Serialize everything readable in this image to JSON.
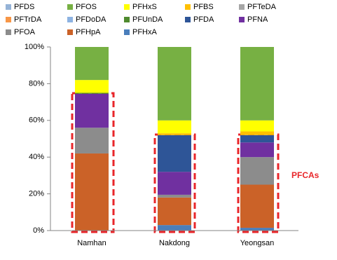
{
  "chart_data": {
    "type": "stacked_bar",
    "categories": [
      "Namhan",
      "Nakdong",
      "Yeongsan"
    ],
    "series": [
      {
        "name": "PFDS",
        "color": "#95b3d7",
        "values": [
          0,
          0,
          0
        ]
      },
      {
        "name": "PFOS",
        "color": "#77b043",
        "values": [
          18,
          40,
          40
        ]
      },
      {
        "name": "PFHxS",
        "color": "#ffff00",
        "values": [
          7,
          7,
          6
        ]
      },
      {
        "name": "PFBS",
        "color": "#ffc000",
        "values": [
          0,
          1,
          2
        ]
      },
      {
        "name": "PFTeDA",
        "color": "#a6a6a6",
        "values": [
          0,
          0,
          0
        ]
      },
      {
        "name": "PFTrDA",
        "color": "#f79646",
        "values": [
          0,
          0,
          0
        ]
      },
      {
        "name": "PFDoDA",
        "color": "#8db3e2",
        "values": [
          0,
          0,
          0
        ]
      },
      {
        "name": "PFUnDA",
        "color": "#4f8a2e",
        "values": [
          0.5,
          0,
          0
        ]
      },
      {
        "name": "PFDA",
        "color": "#2e5597",
        "values": [
          0,
          20,
          4
        ]
      },
      {
        "name": "PFNA",
        "color": "#7030a0",
        "values": [
          18.5,
          12.5,
          8
        ]
      },
      {
        "name": "PFOA",
        "color": "#8c8c8c",
        "values": [
          14,
          1.5,
          15
        ]
      },
      {
        "name": "PFHpA",
        "color": "#cb6228",
        "values": [
          42,
          15,
          23.5
        ]
      },
      {
        "name": "PFHxA",
        "color": "#4a7ebb",
        "values": [
          0,
          3,
          1.5
        ]
      }
    ],
    "ylim": [
      0,
      100
    ],
    "yticks": [
      {
        "value": 0,
        "label": "0%"
      },
      {
        "value": 20,
        "label": "20%"
      },
      {
        "value": 40,
        "label": "40%"
      },
      {
        "value": 60,
        "label": "60%"
      },
      {
        "value": 80,
        "label": "80%"
      },
      {
        "value": 100,
        "label": "100%"
      }
    ],
    "annotations": [
      "PFCAs"
    ]
  }
}
